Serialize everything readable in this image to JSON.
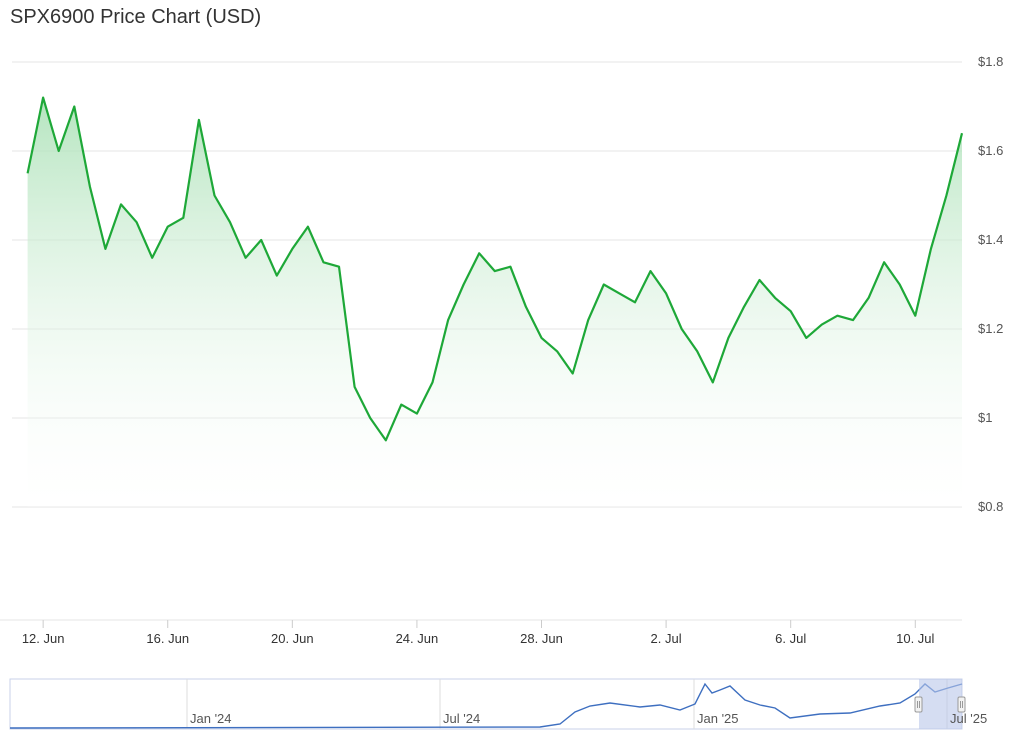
{
  "title": "SPX6900 Price Chart (USD)",
  "colors": {
    "line": "#1ea838",
    "fill_top": "#a8e0b4",
    "navigator_line": "#3e6fc0",
    "navigator_mask": "#b9c7e9"
  },
  "chart_data": {
    "type": "area",
    "title": "SPX6900 Price Chart (USD)",
    "xlabel": "",
    "ylabel": "",
    "x_start": "2025-06-11",
    "x_end": "2025-07-11",
    "x_tick_labels": [
      "12. Jun",
      "16. Jun",
      "20. Jun",
      "24. Jun",
      "28. Jun",
      "2. Jul",
      "6. Jul",
      "10. Jul"
    ],
    "y_tick_labels": [
      "$0.8",
      "$1",
      "$1.2",
      "$1.4",
      "$1.6",
      "$1.8"
    ],
    "ylim": [
      0.8,
      1.8
    ],
    "grid": true,
    "series": [
      {
        "name": "SPX6900",
        "x": [
          "2025-06-11 12:00",
          "2025-06-12 00:00",
          "2025-06-12 12:00",
          "2025-06-13 00:00",
          "2025-06-13 12:00",
          "2025-06-14 00:00",
          "2025-06-14 12:00",
          "2025-06-15 00:00",
          "2025-06-15 12:00",
          "2025-06-16 00:00",
          "2025-06-16 12:00",
          "2025-06-17 00:00",
          "2025-06-17 12:00",
          "2025-06-18 00:00",
          "2025-06-18 12:00",
          "2025-06-19 00:00",
          "2025-06-19 12:00",
          "2025-06-20 00:00",
          "2025-06-20 12:00",
          "2025-06-21 00:00",
          "2025-06-21 12:00",
          "2025-06-22 00:00",
          "2025-06-22 12:00",
          "2025-06-23 00:00",
          "2025-06-23 12:00",
          "2025-06-24 00:00",
          "2025-06-24 12:00",
          "2025-06-25 00:00",
          "2025-06-25 12:00",
          "2025-06-26 00:00",
          "2025-06-26 12:00",
          "2025-06-27 00:00",
          "2025-06-27 12:00",
          "2025-06-28 00:00",
          "2025-06-28 12:00",
          "2025-06-29 00:00",
          "2025-06-29 12:00",
          "2025-06-30 00:00",
          "2025-06-30 12:00",
          "2025-07-01 00:00",
          "2025-07-01 12:00",
          "2025-07-02 00:00",
          "2025-07-02 12:00",
          "2025-07-03 00:00",
          "2025-07-03 12:00",
          "2025-07-04 00:00",
          "2025-07-04 12:00",
          "2025-07-05 00:00",
          "2025-07-05 12:00",
          "2025-07-06 00:00",
          "2025-07-06 12:00",
          "2025-07-07 00:00",
          "2025-07-07 12:00",
          "2025-07-08 00:00",
          "2025-07-08 12:00",
          "2025-07-09 00:00",
          "2025-07-09 12:00",
          "2025-07-10 00:00",
          "2025-07-10 12:00",
          "2025-07-11 00:00",
          "2025-07-11 12:00"
        ],
        "y": [
          1.55,
          1.72,
          1.6,
          1.7,
          1.52,
          1.38,
          1.48,
          1.44,
          1.36,
          1.43,
          1.45,
          1.67,
          1.5,
          1.44,
          1.36,
          1.4,
          1.32,
          1.38,
          1.43,
          1.35,
          1.34,
          1.07,
          1.0,
          0.95,
          1.03,
          1.01,
          1.08,
          1.22,
          1.3,
          1.37,
          1.33,
          1.34,
          1.25,
          1.18,
          1.15,
          1.1,
          1.22,
          1.3,
          1.28,
          1.26,
          1.33,
          1.28,
          1.2,
          1.15,
          1.08,
          1.18,
          1.25,
          1.31,
          1.27,
          1.24,
          1.18,
          1.21,
          1.23,
          1.22,
          1.27,
          1.35,
          1.3,
          1.23,
          1.38,
          1.5,
          1.64
        ]
      }
    ],
    "navigator": {
      "x_tick_labels": [
        "Jan '24",
        "Jul '24",
        "Jan '25",
        "Jul '25"
      ]
    }
  }
}
